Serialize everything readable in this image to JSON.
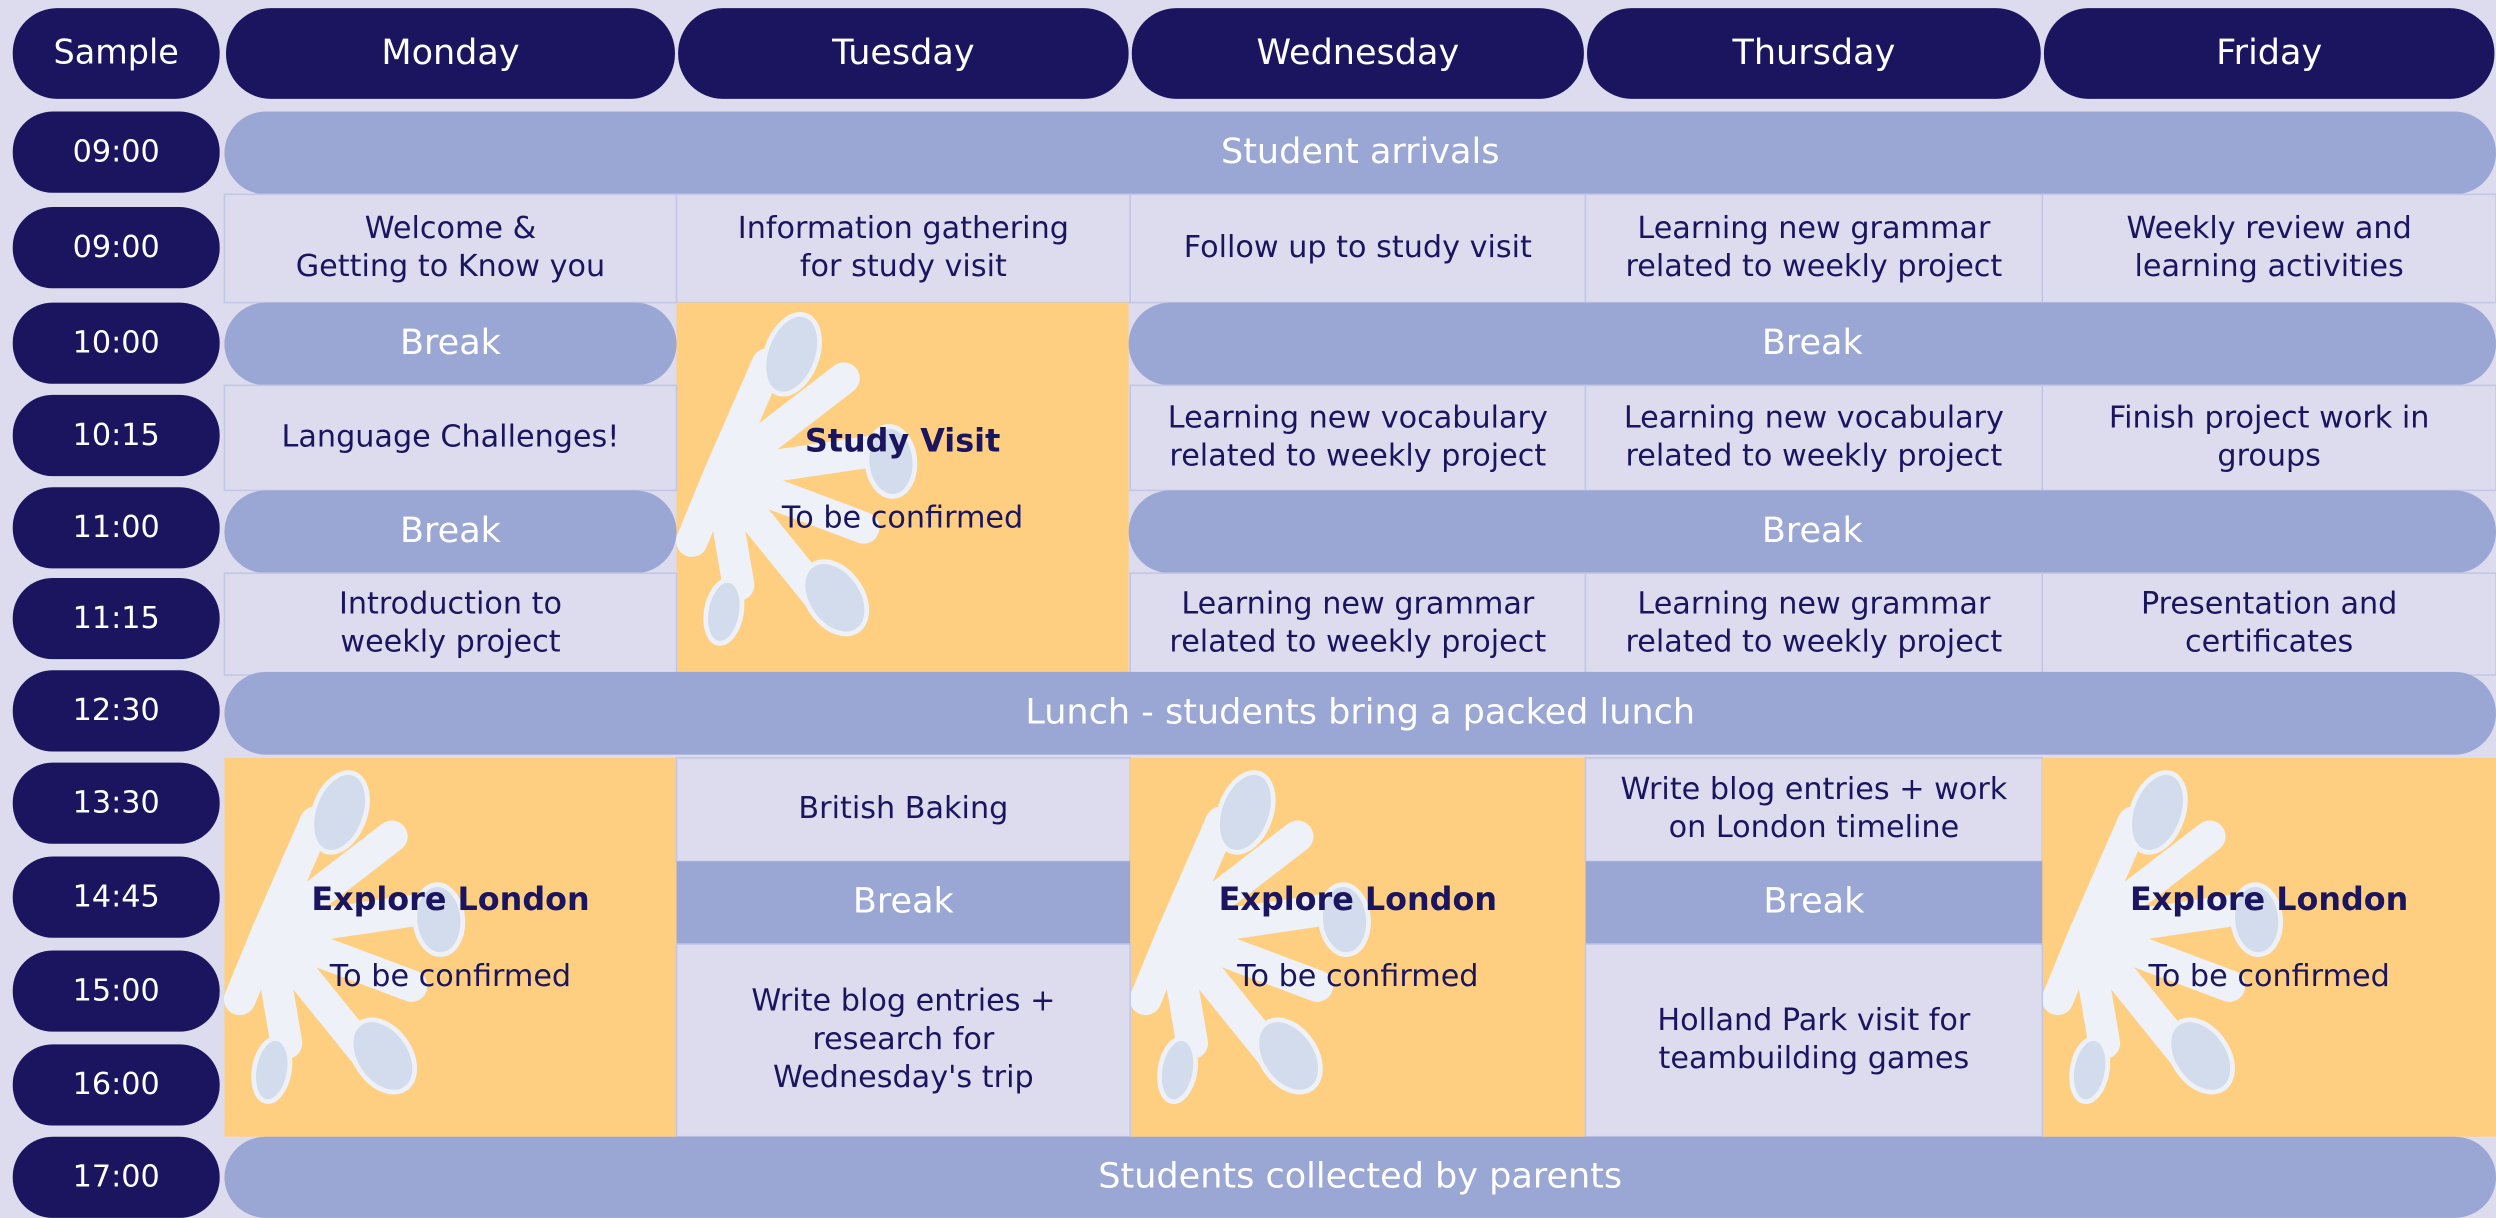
{
  "header": {
    "corner": "Sample",
    "days": [
      "Monday",
      "Tuesday",
      "Wednesday",
      "Thursday",
      "Friday"
    ]
  },
  "times": [
    "09:00",
    "09:00",
    "10:00",
    "10:15",
    "11:00",
    "11:15",
    "12:30",
    "13:30",
    "14:45",
    "15:00",
    "16:00",
    "17:00"
  ],
  "cells": [
    {
      "lines": [
        "Student arrivals"
      ]
    },
    {
      "lines": [
        "Welcome &",
        "Getting to Know you"
      ]
    },
    {
      "lines": [
        "Information gathering",
        "for study visit"
      ]
    },
    {
      "lines": [
        "Follow up to study visit"
      ]
    },
    {
      "lines": [
        "Learning new grammar",
        "related to weekly project"
      ]
    },
    {
      "lines": [
        "Weekly review and",
        "learning activities"
      ]
    },
    {
      "lines": [
        "Break"
      ]
    },
    {
      "title": "Study Visit",
      "subtitle": "To be confirmed"
    },
    {
      "lines": [
        "Break"
      ]
    },
    {
      "lines": [
        "Language Challenges!"
      ]
    },
    {
      "lines": [
        "Learning new vocabulary",
        "related to weekly project"
      ]
    },
    {
      "lines": [
        "Learning new vocabulary",
        "related to weekly project"
      ]
    },
    {
      "lines": [
        "Finish project work in",
        "groups"
      ]
    },
    {
      "lines": [
        "Break"
      ]
    },
    {
      "lines": [
        "Break"
      ]
    },
    {
      "lines": [
        "Introduction to",
        "weekly project"
      ]
    },
    {
      "lines": [
        "Learning new grammar",
        "related to weekly project"
      ]
    },
    {
      "lines": [
        "Learning new grammar",
        "related to weekly project"
      ]
    },
    {
      "lines": [
        "Presentation and",
        "certificates"
      ]
    },
    {
      "lines": [
        "Lunch - students bring a packed lunch"
      ]
    },
    {
      "title": "Explore London",
      "subtitle": "To be confirmed"
    },
    {
      "lines": [
        "British Baking"
      ]
    },
    {
      "title": "Explore London",
      "subtitle": "To be confirmed"
    },
    {
      "lines": [
        "Write blog entries + work",
        "on London timeline"
      ]
    },
    {
      "title": "Explore London",
      "subtitle": "To be confirmed"
    },
    {
      "lines": [
        "Break"
      ]
    },
    {
      "lines": [
        "Break"
      ]
    },
    {
      "lines": [
        "Write blog entries +",
        "research for",
        "Wednesday's trip"
      ]
    },
    {
      "lines": [
        "Holland Park visit for",
        "teambuilding games"
      ]
    },
    {
      "lines": [
        "Students collected by parents"
      ]
    }
  ]
}
